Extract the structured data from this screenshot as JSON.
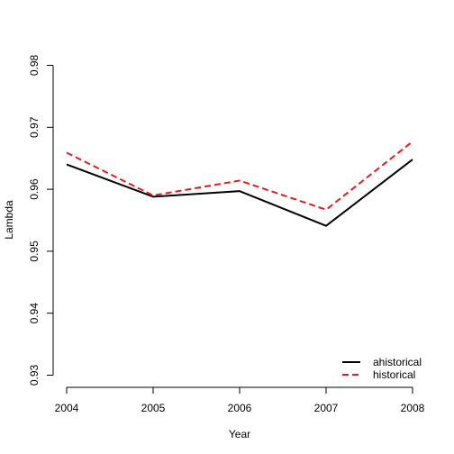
{
  "chart_data": {
    "type": "line",
    "title": "",
    "xlabel": "Year",
    "ylabel": "Lambda",
    "x": [
      2004,
      2005,
      2006,
      2007,
      2008
    ],
    "x_ticks": [
      "2004",
      "2005",
      "2006",
      "2007",
      "2008"
    ],
    "y_ticks": [
      "0.93",
      "0.94",
      "0.95",
      "0.96",
      "0.97",
      "0.98"
    ],
    "ylim": [
      0.93,
      0.98
    ],
    "xlim": [
      2004,
      2008
    ],
    "grid": false,
    "legend_position": "bottom-right",
    "series": [
      {
        "name": "ahistorical",
        "values": [
          0.964,
          0.9588,
          0.9597,
          0.9541,
          0.9648
        ],
        "color": "#000000",
        "dash": "solid"
      },
      {
        "name": "historical",
        "values": [
          0.9659,
          0.959,
          0.9614,
          0.9567,
          0.9677
        ],
        "color": "#e41a1c",
        "dash": "dashed"
      }
    ]
  }
}
